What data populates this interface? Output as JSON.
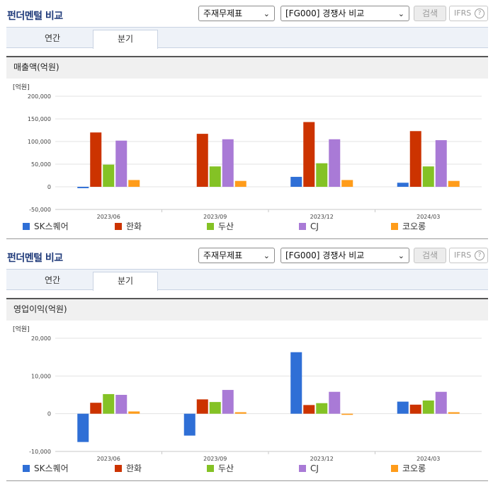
{
  "header": {
    "title": "펀더멘털 비교",
    "select_type": "주재무제표",
    "select_group": "[FG000] 경쟁사 비교",
    "search_label": "검색",
    "ifrs_label": "IFRS",
    "help_label": "?"
  },
  "tabs": {
    "annual": "연간",
    "quarter": "분기"
  },
  "colors": {
    "SK스퀘어": "#2f6fd6",
    "한화": "#cc3300",
    "두산": "#84c225",
    "CJ": "#a97ad6",
    "코오롱": "#ff9c1a"
  },
  "panels": [
    {
      "section_title": "매출액(억원)",
      "unit": "[억원]"
    },
    {
      "section_title": "영업이익(억원)",
      "unit": "[억원]"
    }
  ],
  "chart_data": [
    {
      "type": "bar",
      "title": "매출액(억원)",
      "unit_label": "[억원]",
      "categories": [
        "2023/06",
        "2023/09",
        "2023/12",
        "2024/03"
      ],
      "ylim": [
        -50000,
        200000
      ],
      "yticks": [
        -50000,
        0,
        50000,
        100000,
        150000,
        200000
      ],
      "ytick_labels": [
        "-50,000",
        "0",
        "50,000",
        "100,000",
        "150,000",
        "200,000"
      ],
      "grid": true,
      "legend_position": "bottom",
      "series": [
        {
          "name": "SK스퀘어",
          "values": [
            -3000,
            0,
            22000,
            9000
          ]
        },
        {
          "name": "한화",
          "values": [
            120000,
            117000,
            143000,
            123000
          ]
        },
        {
          "name": "두산",
          "values": [
            49000,
            45000,
            52000,
            45000
          ]
        },
        {
          "name": "CJ",
          "values": [
            102000,
            105000,
            105000,
            103000
          ]
        },
        {
          "name": "코오롱",
          "values": [
            15000,
            13000,
            15000,
            13000
          ]
        }
      ]
    },
    {
      "type": "bar",
      "title": "영업이익(억원)",
      "unit_label": "[억원]",
      "categories": [
        "2023/06",
        "2023/09",
        "2023/12",
        "2024/03"
      ],
      "ylim": [
        -10000,
        20000
      ],
      "yticks": [
        -10000,
        0,
        10000,
        20000
      ],
      "ytick_labels": [
        "-10,000",
        "0",
        "10,000",
        "20,000"
      ],
      "grid": true,
      "legend_position": "bottom",
      "series": [
        {
          "name": "SK스퀘어",
          "values": [
            -7500,
            -5800,
            16300,
            3200
          ]
        },
        {
          "name": "한화",
          "values": [
            2900,
            3800,
            2300,
            2400
          ]
        },
        {
          "name": "두산",
          "values": [
            5200,
            3100,
            2800,
            3500
          ]
        },
        {
          "name": "CJ",
          "values": [
            5000,
            6300,
            5800,
            5800
          ]
        },
        {
          "name": "코오롱",
          "values": [
            600,
            400,
            -300,
            400
          ]
        }
      ]
    }
  ]
}
